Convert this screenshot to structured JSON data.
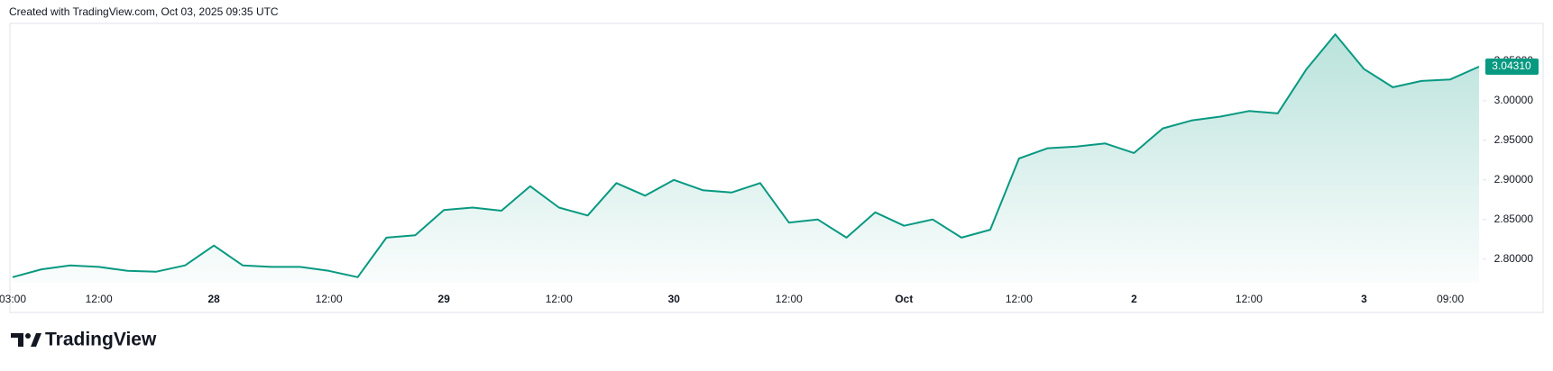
{
  "header": {
    "text": "Created with TradingView.com, Oct 03, 2025 09:35 UTC"
  },
  "footer": {
    "brand": "TradingView"
  },
  "chart_data": {
    "type": "line",
    "categories": [
      "03:00",
      null,
      null,
      "12:00",
      null,
      null,
      null,
      "28",
      null,
      null,
      null,
      "12:00",
      null,
      null,
      null,
      "29",
      null,
      null,
      null,
      "12:00",
      null,
      null,
      null,
      "30",
      null,
      null,
      null,
      "12:00",
      null,
      null,
      null,
      "Oct",
      null,
      null,
      null,
      "12:00",
      null,
      null,
      null,
      "2",
      null,
      null,
      null,
      "12:00",
      null,
      null,
      null,
      "3",
      null,
      null,
      "09:00",
      null
    ],
    "series": [
      {
        "color": "#089981",
        "values": [
          2.777,
          2.787,
          2.792,
          2.79,
          2.785,
          2.784,
          2.792,
          2.817,
          2.792,
          2.79,
          2.79,
          2.785,
          2.777,
          2.827,
          2.83,
          2.862,
          2.865,
          2.861,
          2.892,
          2.865,
          2.855,
          2.896,
          2.88,
          2.9,
          2.887,
          2.884,
          2.896,
          2.846,
          2.85,
          2.827,
          2.859,
          2.842,
          2.85,
          2.827,
          2.837,
          2.927,
          2.94,
          2.942,
          2.946,
          2.934,
          2.965,
          2.975,
          2.98,
          2.987,
          2.984,
          3.04,
          3.084,
          3.04,
          3.017,
          3.025,
          3.027,
          3.0431
        ]
      }
    ],
    "last_price": {
      "value": 3.0431,
      "label": "3.04310"
    },
    "ylim": [
      2.77,
      3.1
    ],
    "yticks": [
      {
        "value": 2.8,
        "label": "2.80000"
      },
      {
        "value": 2.85,
        "label": "2.85000"
      },
      {
        "value": 2.9,
        "label": "2.90000"
      },
      {
        "value": 2.95,
        "label": "2.95000"
      },
      {
        "value": 3.0,
        "label": "3.00000"
      },
      {
        "value": 3.05,
        "label": "3.05000"
      }
    ],
    "grid": false
  }
}
